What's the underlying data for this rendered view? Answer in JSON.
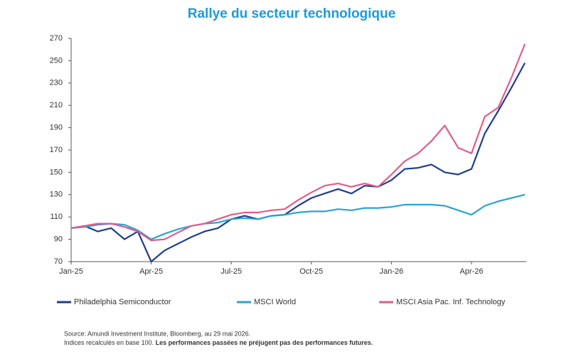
{
  "chart_data": {
    "type": "line",
    "title": "Rallye du secteur technologique",
    "categories": [
      "Jan-25",
      null,
      null,
      null,
      null,
      null,
      "Apr-25",
      null,
      null,
      null,
      null,
      null,
      "Jul-25",
      null,
      null,
      null,
      null,
      null,
      "Oct-25",
      null,
      null,
      null,
      null,
      null,
      "Jan-26",
      null,
      null,
      null,
      null,
      null,
      "Apr-26",
      null,
      null,
      null,
      null
    ],
    "series": [
      {
        "name": "Philadelphia Semiconductor",
        "color": "#1f3e8c",
        "values": [
          100,
          102,
          97,
          100,
          90,
          97,
          70,
          80,
          86,
          92,
          97,
          100,
          108,
          111,
          108,
          111,
          112,
          120,
          127,
          131,
          135,
          131,
          138,
          137,
          143,
          153,
          154,
          157,
          150,
          148,
          153,
          185,
          205,
          226,
          248
        ]
      },
      {
        "name": "MSCI World",
        "color": "#2aa3d3",
        "values": [
          100,
          101,
          103,
          104,
          103,
          98,
          90,
          95,
          99,
          102,
          104,
          105,
          108,
          109,
          108,
          111,
          112,
          114,
          115,
          115,
          117,
          116,
          118,
          118,
          119,
          121,
          121,
          121,
          120,
          116,
          112,
          120,
          124,
          127,
          130
        ]
      },
      {
        "name": "MSCI Asia Pac. Inf. Technology",
        "color": "#e05c8c",
        "values": [
          100,
          102,
          104,
          104,
          101,
          97,
          89,
          90,
          96,
          102,
          104,
          108,
          112,
          114,
          114,
          116,
          117,
          125,
          132,
          138,
          140,
          137,
          140,
          137,
          148,
          160,
          167,
          178,
          192,
          172,
          167,
          200,
          208,
          235,
          265
        ]
      }
    ],
    "ylim": [
      70,
      270
    ],
    "yticks": [
      70,
      90,
      110,
      130,
      150,
      170,
      190,
      210,
      230,
      250,
      270
    ],
    "grid": false,
    "source": "Source: Amundi Investment Institute, Bloomberg, au 29 mai 2026.",
    "note": "Indices recalculés en base 100.",
    "note_bold": "Les performances passées ne préjugent pas des performances futures."
  }
}
